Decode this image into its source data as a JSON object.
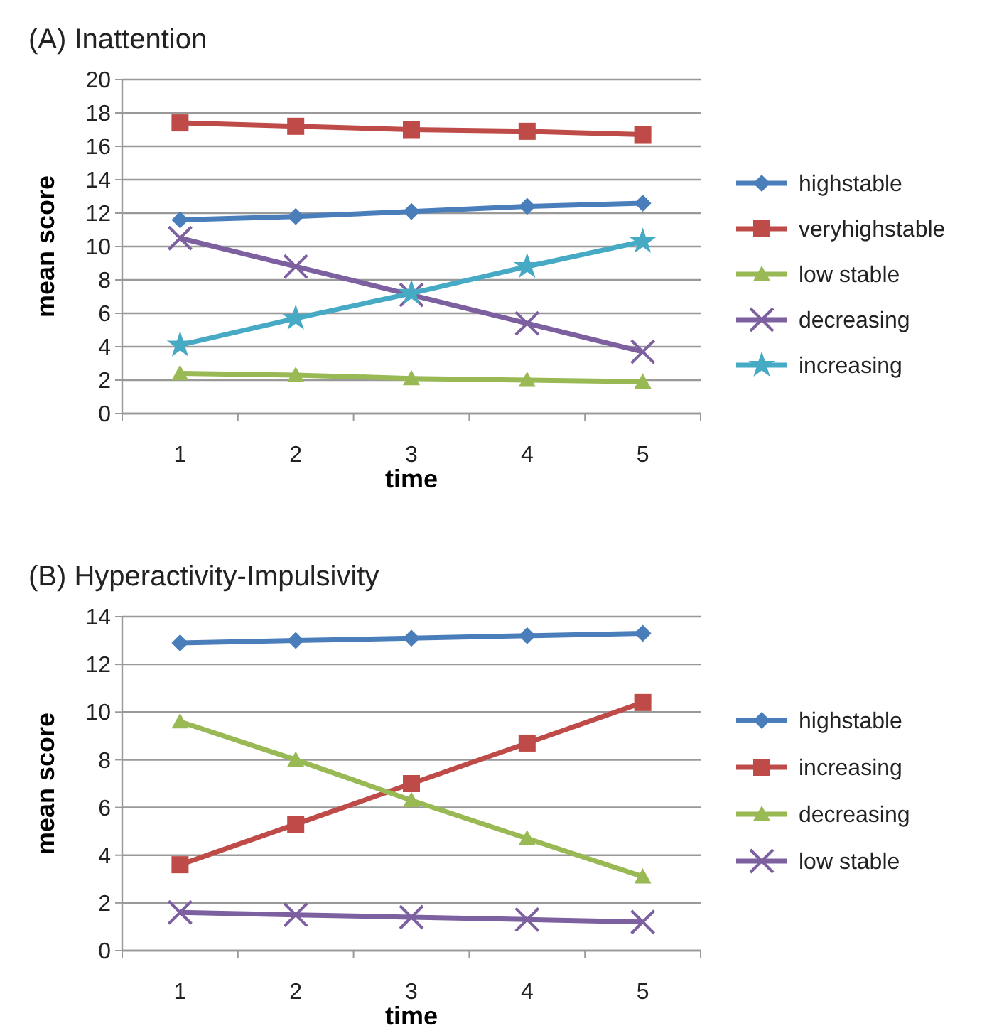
{
  "chart_data": [
    {
      "type": "line",
      "title": "(A) Inattention",
      "xlabel": "time",
      "ylabel": "mean score",
      "categories": [
        "1",
        "2",
        "3",
        "4",
        "5"
      ],
      "ylim": [
        0,
        20
      ],
      "yticks": [
        0,
        2,
        4,
        6,
        8,
        10,
        12,
        14,
        16,
        18,
        20
      ],
      "grid": "y",
      "legend": "right",
      "series": [
        {
          "name": "highstable",
          "color": "#4a7ebb",
          "marker": "diamond",
          "values": [
            11.6,
            11.8,
            12.1,
            12.4,
            12.6
          ]
        },
        {
          "name": "veryhighstable",
          "color": "#be4b48",
          "marker": "square",
          "values": [
            17.4,
            17.2,
            17.0,
            16.9,
            16.7
          ]
        },
        {
          "name": "low stable",
          "color": "#98b954",
          "marker": "triangle",
          "values": [
            2.4,
            2.3,
            2.1,
            2.0,
            1.9
          ]
        },
        {
          "name": "decreasing",
          "color": "#7d60a0",
          "marker": "cross",
          "values": [
            10.5,
            8.8,
            7.1,
            5.4,
            3.7
          ]
        },
        {
          "name": "increasing",
          "color": "#46aac5",
          "marker": "star",
          "values": [
            4.1,
            5.7,
            7.2,
            8.8,
            10.3
          ]
        }
      ]
    },
    {
      "type": "line",
      "title": "(B) Hyperactivity-Impulsivity",
      "xlabel": "time",
      "ylabel": "mean score",
      "categories": [
        "1",
        "2",
        "3",
        "4",
        "5"
      ],
      "ylim": [
        0,
        14
      ],
      "yticks": [
        0,
        2,
        4,
        6,
        8,
        10,
        12,
        14
      ],
      "grid": "y",
      "legend": "right",
      "series": [
        {
          "name": "highstable",
          "color": "#4a7ebb",
          "marker": "diamond",
          "values": [
            12.9,
            13.0,
            13.1,
            13.2,
            13.3
          ]
        },
        {
          "name": "increasing",
          "color": "#be4b48",
          "marker": "square",
          "values": [
            3.6,
            5.3,
            7.0,
            8.7,
            10.4
          ]
        },
        {
          "name": "decreasing",
          "color": "#98b954",
          "marker": "triangle",
          "values": [
            9.6,
            8.0,
            6.3,
            4.7,
            3.1
          ]
        },
        {
          "name": "low stable",
          "color": "#7d60a0",
          "marker": "cross",
          "values": [
            1.6,
            1.5,
            1.4,
            1.3,
            1.2
          ]
        }
      ]
    }
  ]
}
